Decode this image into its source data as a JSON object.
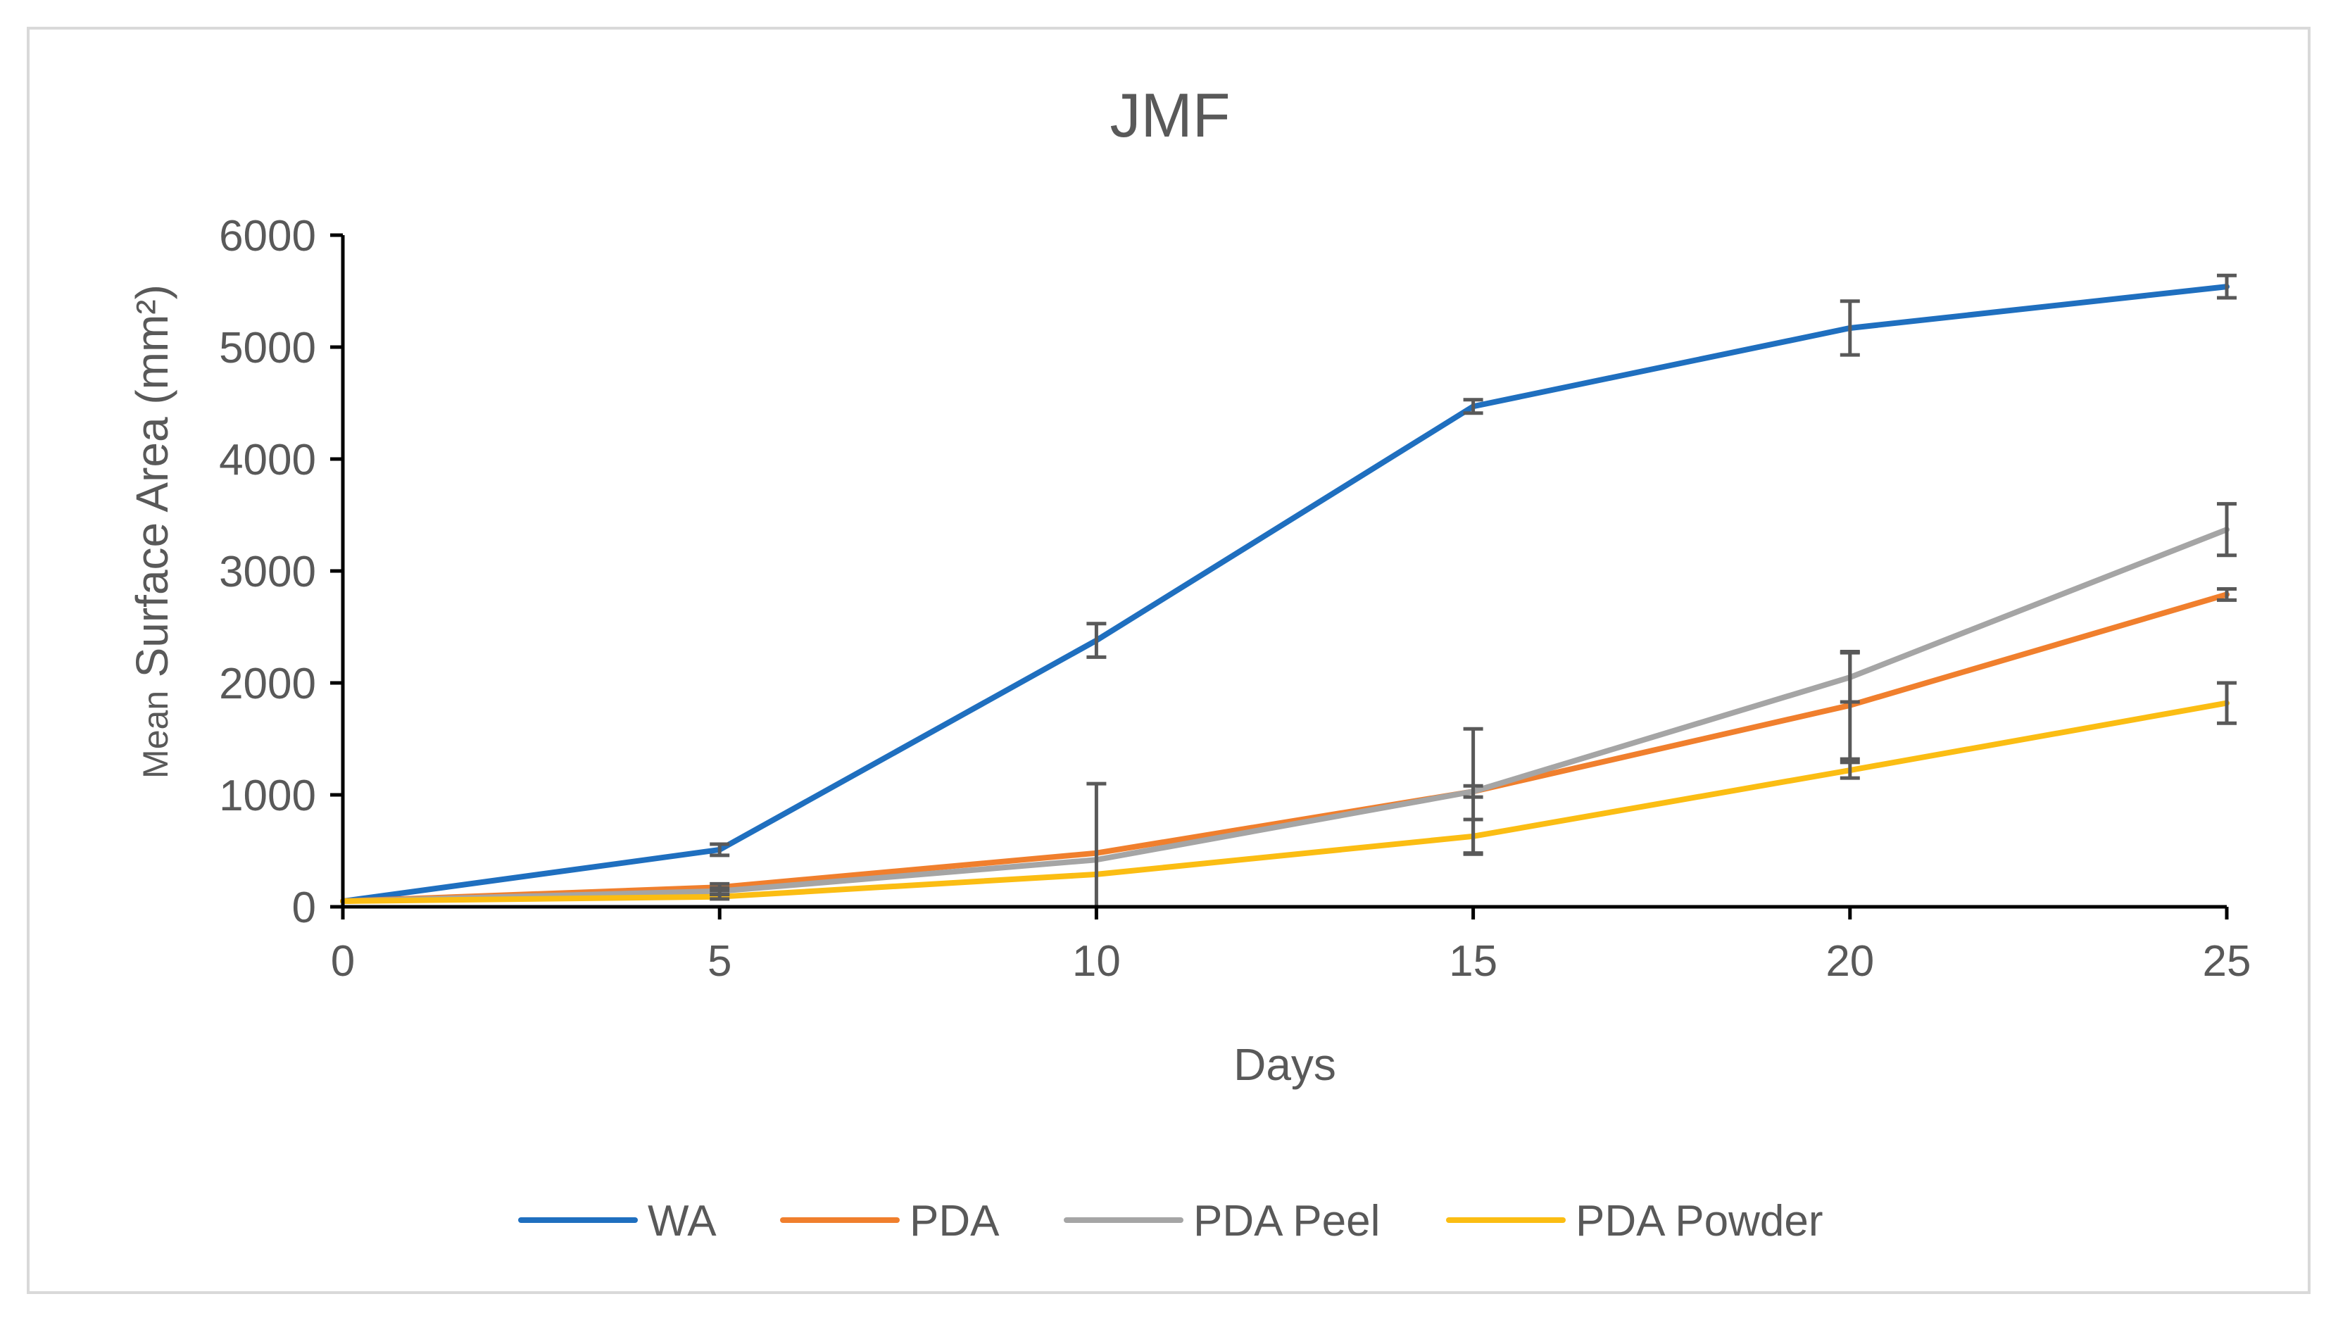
{
  "chart_data": {
    "type": "line",
    "title": "JMF",
    "xlabel": "Days",
    "ylabel_prefix": "Mean",
    "ylabel": "Surface Area (mm²)",
    "x": [
      0,
      5,
      10,
      15,
      20,
      25
    ],
    "xticks": [
      "0",
      "5",
      "10",
      "15",
      "20",
      "25"
    ],
    "yticks": [
      "0",
      "1000",
      "2000",
      "3000",
      "4000",
      "5000",
      "6000"
    ],
    "xlim": [
      0,
      25
    ],
    "ylim": [
      0,
      6000
    ],
    "grid": false,
    "legend_position": "bottom",
    "series": [
      {
        "name": "WA",
        "color": "#1f6fbf",
        "values": [
          50,
          510,
          2380,
          4470,
          5170,
          5540
        ],
        "errors": [
          0,
          50,
          150,
          60,
          240,
          100
        ]
      },
      {
        "name": "PDA",
        "color": "#f07f2d",
        "values": [
          50,
          175,
          480,
          1030,
          1800,
          2790
        ],
        "errors": [
          0,
          30,
          620,
          50,
          480,
          50
        ]
      },
      {
        "name": "PDA Peel",
        "color": "#a5a5a5",
        "values": [
          50,
          140,
          420,
          1030,
          2050,
          3370
        ],
        "errors": [
          0,
          30,
          0,
          560,
          220,
          230
        ]
      },
      {
        "name": "PDA Powder",
        "color": "#fbbd13",
        "values": [
          50,
          90,
          290,
          630,
          1220,
          1820
        ],
        "errors": [
          0,
          20,
          0,
          150,
          70,
          180
        ]
      }
    ]
  }
}
